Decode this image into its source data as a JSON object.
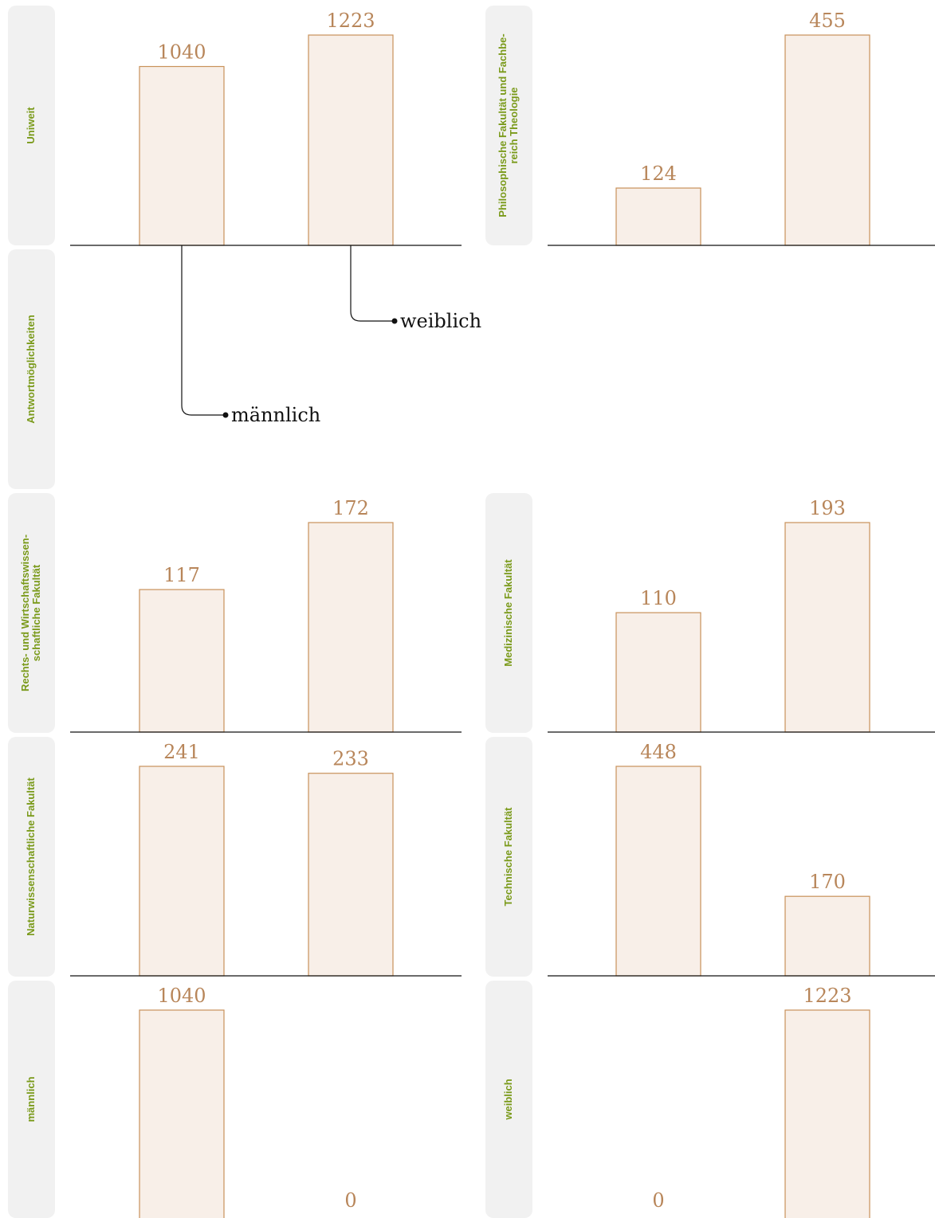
{
  "chart_data": [
    {
      "type": "bar",
      "title": "Uniweit",
      "categories": [
        "männlich",
        "weiblich"
      ],
      "values": [
        1040,
        1223
      ]
    },
    {
      "type": "bar",
      "title": "Philosophische Fakultät und Fachbe- reich Theologie",
      "categories": [
        "männlich",
        "weiblich"
      ],
      "values": [
        124,
        455
      ]
    },
    {
      "type": "bar",
      "title": "Rechts- und Wirtschaftswissen- schaftliche Fakultät",
      "categories": [
        "männlich",
        "weiblich"
      ],
      "values": [
        117,
        172
      ]
    },
    {
      "type": "bar",
      "title": "Medizinische Fakultät",
      "categories": [
        "männlich",
        "weiblich"
      ],
      "values": [
        110,
        193
      ]
    },
    {
      "type": "bar",
      "title": "Naturwissenschaftliche Fakultät",
      "categories": [
        "männlich",
        "weiblich"
      ],
      "values": [
        241,
        233
      ]
    },
    {
      "type": "bar",
      "title": "Technische Fakultät",
      "categories": [
        "männlich",
        "weiblich"
      ],
      "values": [
        448,
        170
      ]
    },
    {
      "type": "bar",
      "title": "männlich",
      "categories": [
        "männlich",
        "weiblich"
      ],
      "values": [
        1040,
        0
      ]
    },
    {
      "type": "bar",
      "title": "weiblich",
      "categories": [
        "männlich",
        "weiblich"
      ],
      "values": [
        0,
        1223
      ]
    }
  ],
  "legend": {
    "title": "Antwortmöglichkeiten",
    "items": [
      "männlich",
      "weiblich"
    ]
  },
  "colors": {
    "bar_fill": "#f8efe8",
    "bar_stroke": "#c8915a",
    "value_text": "#b8865a",
    "label_text": "#7a9a1a",
    "label_bg": "#f1f1f1",
    "axis": "#111111"
  }
}
